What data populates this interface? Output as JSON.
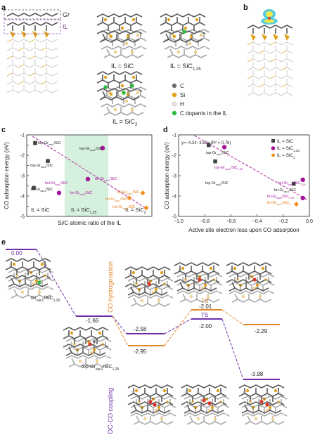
{
  "panels": {
    "a": "a",
    "b": "b",
    "c": "c",
    "d": "d",
    "e": "e"
  },
  "panel_a": {
    "gr_label": "Gr",
    "il_label": "IL",
    "il_sic": "IL = SiC",
    "il_sic125": "IL = SiC",
    "il_sic125_sub": "1.25",
    "il_sic2": "IL = SiC",
    "il_sic2_sub": "2",
    "legend": [
      {
        "label": "C",
        "color": "#6e6e6e"
      },
      {
        "label": "Si",
        "color": "#e0a21d"
      },
      {
        "label": "H",
        "color": "#e4e4e4"
      },
      {
        "label": "C dopants in the IL",
        "color": "#2dbb3b"
      }
    ]
  },
  "chart_data": [
    {
      "panel": "c",
      "type": "scatter",
      "ylabel": "CO adsorption energy (eV)",
      "xlabel": "Si/C atomic ratio of the IL",
      "ylim": [
        -5,
        -1
      ],
      "yticks": [
        -1,
        -1.5,
        -2,
        -2.5,
        -3,
        -3.5,
        -4,
        -4.5,
        -5
      ],
      "ytick_labels": [
        "-1",
        "",
        "-2",
        "",
        "-3",
        "",
        "-4",
        "",
        "-5"
      ],
      "region_labels": [
        "IL = SiC",
        "IL = SiC",
        "IL = SiC"
      ],
      "region_subs": [
        "",
        "1.25",
        "2"
      ],
      "series": [
        {
          "name": "IL = SiC",
          "color": "#444444",
          "marker": "square",
          "values": [
            -1.4,
            -2.28,
            -3.6
          ],
          "labels": [
            "top-Gr",
            "top-Gr",
            "bri-Gr"
          ],
          "label_subs": [
            "vac1",
            "vac1",
            "vac1"
          ]
        },
        {
          "name": "IL = SiC1.25",
          "color": "#a3149b",
          "marker": "circle",
          "values": [
            -1.65,
            -3.17,
            -3.85
          ],
          "labels": [
            "top-Gr",
            "bri-Gr",
            "bri-Gr"
          ],
          "label_subs": [
            "vac1",
            "vac1",
            "vac2"
          ]
        },
        {
          "name": "IL = SiC2",
          "color": "#f28c1e",
          "marker": "diamond",
          "values": [
            -3.85,
            -4.1,
            -4.58
          ],
          "labels": [
            "hol-Gr",
            "bri-Gr",
            "hol-Gr"
          ],
          "label_subs": [
            "vac1",
            "vac1",
            "vac1"
          ]
        }
      ],
      "extra_labels": [
        {
          "text": "hol-Gr",
          "sub": "vac2",
          "suffix": "/SiC",
          "suffix_sub": "1.25"
        }
      ],
      "label_suffixes": [
        "/SiC",
        "/SiC",
        "/SiC",
        "/SiC",
        "/SiC",
        "/SiC",
        "/SiC",
        "/SiC",
        "/SiC"
      ]
    },
    {
      "panel": "d",
      "type": "scatter",
      "ylabel": "CO adsorption energy (eV)",
      "xlabel": "Active site electron loss upon CO adsorption",
      "xlim": [
        -1.0,
        0.0
      ],
      "ylim": [
        -5,
        -1
      ],
      "xticks": [
        -1.0,
        -0.8,
        -0.6,
        -0.4,
        -0.2,
        0.0
      ],
      "xtick_labels": [
        "−1.0",
        "−0.8",
        "−0.6",
        "−0.4",
        "−0.2",
        "0.0"
      ],
      "yticks": [
        -1,
        -2,
        -3,
        -4,
        -5
      ],
      "ytick_labels": [
        "-1",
        "-2",
        "-3",
        "-4",
        "-5"
      ],
      "fit_text": "y=−4.24−3.65x  (R² = 0.76)",
      "fit": {
        "intercept": -4.24,
        "slope": -3.65
      },
      "legend": [
        "IL = SiC",
        "IL = SiC",
        "IL = SiC"
      ],
      "legend_subs": [
        "",
        "1.25",
        "2"
      ],
      "series": [
        {
          "name": "IL = SiC",
          "color": "#444444",
          "marker": "square",
          "x": [
            -0.77,
            -0.72,
            -0.12
          ],
          "y": [
            -1.5,
            -2.3,
            -3.4
          ],
          "labels": [
            "top-Gr",
            "top-Gr",
            "bri-Gr"
          ],
          "label_subs": [
            "vac1",
            "vac1",
            "vac1"
          ],
          "suffix": "/SiC"
        },
        {
          "name": "IL = SiC1.25",
          "color": "#a3149b",
          "marker": "circle",
          "x": [
            -0.65,
            -0.05,
            -0.05
          ],
          "y": [
            -1.6,
            -3.2,
            -4.1
          ],
          "labels": [
            "top-Gr",
            "bri-Gr",
            "bri-Gr"
          ],
          "label_subs": [
            "vac1",
            "vac1",
            "vac2"
          ],
          "suffix": "/SiC",
          "suffix_sub": "1.25"
        },
        {
          "name": "IL = SiC2",
          "color": "#f28c1e",
          "marker": "diamond",
          "x": [
            -0.1
          ],
          "y": [
            -4.4
          ],
          "labels": [
            "bri-Gr"
          ],
          "label_subs": [
            "vac1"
          ],
          "suffix": "/SiC",
          "suffix_sub": "2"
        }
      ]
    },
    {
      "panel": "e",
      "type": "energy_profile",
      "start": {
        "value": "0.00",
        "label": "Gr",
        "label_sub": "vac1",
        "suffix": "/SiC",
        "suffix_sub": "1.25"
      },
      "adsorbed": {
        "value": "-1.66",
        "label": "top-Gr",
        "label_sub": "vac1",
        "suffix": "/SiC",
        "suffix_sub": "1.25"
      },
      "hydrogenation": {
        "title": "CO hydrogenation",
        "color": "#e2892a",
        "levels": [
          "-2.95",
          "-2.01",
          "-2.29"
        ],
        "ts": "TS"
      },
      "coupling": {
        "title": "OC-CO coupling",
        "color": "#6f2fa8",
        "levels": [
          "-2.58",
          "-2.00",
          "-3.98"
        ],
        "ts": "TS"
      }
    }
  ]
}
